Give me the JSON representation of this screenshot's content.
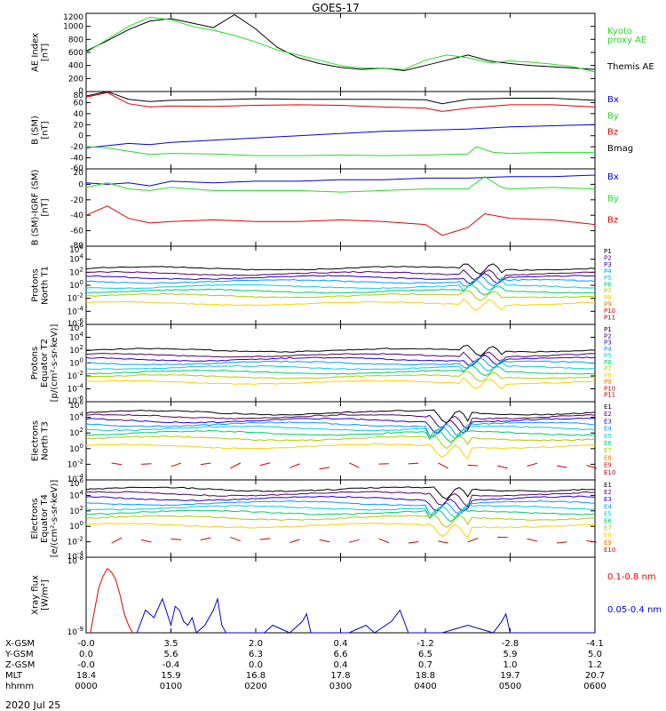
{
  "title": "GOES-17",
  "date_label": "2020 Jul 25",
  "colors": {
    "black": "#000000",
    "green": "#22dd22",
    "red": "#dd0000",
    "blue": "#0000cc",
    "ch": [
      "#000000",
      "#550066",
      "#2200cc",
      "#0099ff",
      "#00ccdd",
      "#00cc66",
      "#aacc00",
      "#ffcc00",
      "#ee7700",
      "#dd0000",
      "#aa0000"
    ]
  },
  "x_axis": {
    "rows": [
      {
        "label": "X-GSM",
        "values": [
          "-0.0",
          "3.5",
          "2.0",
          "0.4",
          "-1.2",
          "-2.8",
          "-4.1"
        ]
      },
      {
        "label": "Y-GSM",
        "values": [
          "0.0",
          "5.6",
          "6.3",
          "6.6",
          "6.5",
          "5.9",
          "5.0"
        ]
      },
      {
        "label": "Z-GSM",
        "values": [
          "-0.0",
          "-0.4",
          "0.0",
          "0.4",
          "0.7",
          "1.0",
          "1.2"
        ]
      },
      {
        "label": "MLT",
        "values": [
          "18.4",
          "15.9",
          "16.8",
          "17.8",
          "18.8",
          "19.7",
          "20.7"
        ]
      },
      {
        "label": "hhmm",
        "values": [
          "0000",
          "0100",
          "0200",
          "0300",
          "0400",
          "0500",
          "0600"
        ]
      }
    ]
  },
  "chart_data": [
    {
      "id": "ae",
      "type": "line",
      "ylabel": [
        "AE Index",
        "[nT]"
      ],
      "yticks": [
        "1200",
        "1000",
        "800",
        "600",
        "400",
        "200",
        "0"
      ],
      "ylim": [
        0,
        1200
      ],
      "legend": [
        {
          "text": "Kyoto",
          "color": "#22dd22"
        },
        {
          "text": "proxy AE",
          "color": "#22dd22"
        },
        {
          "text": "Themis AE",
          "color": "#000000"
        }
      ],
      "series": [
        {
          "name": "Themis AE",
          "color": "#000000",
          "x": [
            0,
            0.25,
            0.5,
            0.75,
            1.0,
            1.25,
            1.5,
            1.75,
            2.0,
            2.25,
            2.5,
            2.75,
            3.0,
            3.25,
            3.5,
            3.75,
            4.0,
            4.25,
            4.5,
            4.75,
            5.0,
            5.25,
            5.5,
            5.75,
            6.0
          ],
          "y": [
            620,
            780,
            950,
            1080,
            1120,
            1050,
            980,
            1180,
            960,
            680,
            520,
            430,
            370,
            340,
            360,
            320,
            400,
            480,
            560,
            470,
            430,
            400,
            380,
            360,
            340
          ]
        },
        {
          "name": "Kyoto proxy AE",
          "color": "#22dd22",
          "x": [
            0,
            0.25,
            0.5,
            0.75,
            1.0,
            1.25,
            1.5,
            1.75,
            2.0,
            2.25,
            2.5,
            2.75,
            3.0,
            3.25,
            3.5,
            3.75,
            4.0,
            4.25,
            4.5,
            4.75,
            5.0,
            5.25,
            5.5,
            5.75,
            6.0
          ],
          "y": [
            600,
            800,
            1000,
            1140,
            1100,
            1000,
            940,
            860,
            760,
            640,
            560,
            480,
            400,
            360,
            360,
            340,
            480,
            560,
            520,
            440,
            470,
            450,
            420,
            380,
            300
          ]
        }
      ]
    },
    {
      "id": "bsm",
      "type": "line",
      "ylabel": [
        "B (SM)",
        "[nT]"
      ],
      "yticks": [
        "80",
        "60",
        "40",
        "20",
        "0",
        "-20",
        "-40",
        "-60"
      ],
      "ylim": [
        -60,
        80
      ],
      "legend": [
        {
          "text": "Bx",
          "color": "#0000cc"
        },
        {
          "text": "By",
          "color": "#22dd22"
        },
        {
          "text": "Bz",
          "color": "#dd0000"
        },
        {
          "text": "Bmag",
          "color": "#000000"
        }
      ],
      "series": [
        {
          "name": "Bmag",
          "color": "#000000",
          "x": [
            0,
            0.25,
            0.5,
            0.75,
            1.0,
            1.5,
            2.0,
            2.5,
            3.0,
            3.5,
            4.0,
            4.2,
            4.5,
            5.0,
            5.5,
            6.0
          ],
          "y": [
            72,
            80,
            66,
            62,
            64,
            65,
            67,
            66,
            66,
            66,
            65,
            58,
            66,
            68,
            68,
            64
          ]
        },
        {
          "name": "Bz",
          "color": "#dd0000",
          "x": [
            0,
            0.25,
            0.5,
            0.75,
            1.0,
            1.5,
            2.0,
            2.5,
            3.0,
            3.5,
            4.0,
            4.2,
            4.5,
            5.0,
            5.5,
            6.0
          ],
          "y": [
            70,
            78,
            58,
            52,
            54,
            53,
            55,
            56,
            55,
            52,
            50,
            44,
            50,
            56,
            56,
            52
          ]
        },
        {
          "name": "Bx",
          "color": "#0000cc",
          "x": [
            0,
            0.25,
            0.5,
            0.75,
            1.0,
            1.5,
            2.0,
            2.5,
            3.0,
            3.5,
            4.0,
            4.5,
            5.0,
            5.5,
            6.0
          ],
          "y": [
            -22,
            -18,
            -14,
            -16,
            -12,
            -8,
            -4,
            0,
            4,
            8,
            10,
            12,
            16,
            18,
            20
          ]
        },
        {
          "name": "By",
          "color": "#22dd22",
          "x": [
            0,
            0.25,
            0.5,
            0.75,
            1.0,
            1.5,
            2.0,
            2.5,
            3.0,
            3.5,
            4.0,
            4.5,
            4.6,
            4.8,
            5.0,
            5.5,
            6.0
          ],
          "y": [
            -20,
            -22,
            -28,
            -34,
            -32,
            -33,
            -36,
            -36,
            -35,
            -36,
            -35,
            -33,
            -20,
            -30,
            -32,
            -30,
            -30
          ]
        }
      ]
    },
    {
      "id": "bsmigrf",
      "type": "line",
      "ylabel": [
        "B (SM)-IGRF (SM)",
        "[nT]"
      ],
      "yticks": [
        "20",
        "0",
        "-20",
        "-40",
        "-60",
        "-80"
      ],
      "ylim": [
        -80,
        20
      ],
      "legend": [
        {
          "text": "Bx",
          "color": "#0000cc"
        },
        {
          "text": "By",
          "color": "#22dd22"
        },
        {
          "text": "Bz",
          "color": "#dd0000"
        }
      ],
      "series": [
        {
          "name": "Bx",
          "color": "#0000cc",
          "x": [
            0,
            0.25,
            0.5,
            0.75,
            1.0,
            1.5,
            2.0,
            2.5,
            3.0,
            3.5,
            4.0,
            4.5,
            5.0,
            5.5,
            6.0
          ],
          "y": [
            2,
            0,
            2,
            -2,
            4,
            2,
            4,
            4,
            6,
            6,
            8,
            8,
            10,
            10,
            12
          ]
        },
        {
          "name": "By",
          "color": "#22dd22",
          "x": [
            0,
            0.25,
            0.5,
            0.75,
            1.0,
            1.5,
            2.0,
            2.5,
            3.0,
            3.5,
            4.0,
            4.5,
            4.7,
            4.9,
            5.0,
            5.5,
            6.0
          ],
          "y": [
            -4,
            2,
            -6,
            -8,
            -4,
            -8,
            -8,
            -8,
            -10,
            -8,
            -6,
            -6,
            10,
            -4,
            -6,
            -4,
            -6
          ]
        },
        {
          "name": "Bz",
          "color": "#dd0000",
          "x": [
            0,
            0.25,
            0.5,
            0.75,
            1.0,
            1.5,
            2.0,
            2.5,
            3.0,
            3.5,
            4.0,
            4.2,
            4.5,
            4.7,
            5.0,
            5.5,
            6.0
          ],
          "y": [
            -40,
            -28,
            -44,
            -50,
            -48,
            -46,
            -48,
            -48,
            -46,
            -48,
            -52,
            -66,
            -56,
            -38,
            -44,
            -46,
            -52
          ]
        }
      ]
    },
    {
      "id": "pt1",
      "type": "line",
      "scale": "log",
      "ylabel": [
        "Protons",
        "North T1"
      ],
      "yticks": [
        "10^6",
        "10^4",
        "10^2",
        "10^0",
        "10^-2",
        "10^-4",
        "10^-6"
      ],
      "ylim": [
        -6,
        6
      ],
      "legend": [
        {
          "text": "P1",
          "color": "#000000"
        },
        {
          "text": "P2",
          "color": "#550066"
        },
        {
          "text": "P3",
          "color": "#2200cc"
        },
        {
          "text": "P4",
          "color": "#0099ff"
        },
        {
          "text": "P5",
          "color": "#00ccdd"
        },
        {
          "text": "P6",
          "color": "#00cc66"
        },
        {
          "text": "P7",
          "color": "#aacc00"
        },
        {
          "text": "P8",
          "color": "#ffcc00"
        },
        {
          "text": "P9",
          "color": "#ee7700"
        },
        {
          "text": "P10",
          "color": "#dd0000"
        },
        {
          "text": "P11",
          "color": "#aa0000"
        }
      ],
      "levels": [
        2.6,
        1.8,
        1.2,
        0.6,
        -0.2,
        -0.9,
        -1.6,
        -2.8
      ],
      "event": [
        4.4,
        4.9
      ]
    },
    {
      "id": "pt2",
      "type": "line",
      "scale": "log",
      "ylabel": [
        "Protons",
        "Equator T2",
        "[p/(cm²-s-sr-keV)]"
      ],
      "yticks": [
        "10^6",
        "10^4",
        "10^2",
        "10^0",
        "10^-2",
        "10^-4",
        "10^-6"
      ],
      "ylim": [
        -6,
        6
      ],
      "legend": [
        {
          "text": "P1",
          "color": "#000000"
        },
        {
          "text": "P2",
          "color": "#550066"
        },
        {
          "text": "P3",
          "color": "#2200cc"
        },
        {
          "text": "P4",
          "color": "#0099ff"
        },
        {
          "text": "P5",
          "color": "#00ccdd"
        },
        {
          "text": "P6",
          "color": "#00cc66"
        },
        {
          "text": "P7",
          "color": "#aacc00"
        },
        {
          "text": "P8",
          "color": "#ffcc00"
        },
        {
          "text": "P9",
          "color": "#ee7700"
        },
        {
          "text": "P10",
          "color": "#dd0000"
        },
        {
          "text": "P11",
          "color": "#aa0000"
        }
      ],
      "levels": [
        2.0,
        1.2,
        0.6,
        0.0,
        -0.7,
        -1.4,
        -2.1,
        -3.0
      ],
      "event": [
        4.4,
        4.9
      ]
    },
    {
      "id": "et3",
      "type": "line",
      "scale": "log",
      "ylabel": [
        "Electrons",
        "North T3"
      ],
      "yticks": [
        "10^6",
        "10^4",
        "10^2",
        "10^0",
        "10^-2",
        "10^-4"
      ],
      "ylim": [
        -4,
        6
      ],
      "legend": [
        {
          "text": "E1",
          "color": "#000000"
        },
        {
          "text": "E2",
          "color": "#550066"
        },
        {
          "text": "E3",
          "color": "#2200cc"
        },
        {
          "text": "E4",
          "color": "#0099ff"
        },
        {
          "text": "E5",
          "color": "#00ccdd"
        },
        {
          "text": "E6",
          "color": "#00cc66"
        },
        {
          "text": "E7",
          "color": "#aacc00"
        },
        {
          "text": "E8",
          "color": "#ee7700"
        },
        {
          "text": "E9",
          "color": "#dd0000"
        },
        {
          "text": "E10",
          "color": "#aa0000"
        }
      ],
      "levels": [
        4.6,
        4.1,
        3.6,
        3.1,
        2.6,
        2.0,
        1.3,
        0.3
      ],
      "sparse": -2.2,
      "event": [
        4.0,
        4.5
      ]
    },
    {
      "id": "et4",
      "type": "line",
      "scale": "log",
      "ylabel": [
        "Electrons",
        "Equator T4",
        "[e/(cm²-s-sr-keV)]"
      ],
      "yticks": [
        "10^6",
        "10^4",
        "10^2",
        "10^0",
        "10^-2",
        "10^-4"
      ],
      "ylim": [
        -4,
        6
      ],
      "legend": [
        {
          "text": "E1",
          "color": "#000000"
        },
        {
          "text": "E2",
          "color": "#550066"
        },
        {
          "text": "E3",
          "color": "#2200cc"
        },
        {
          "text": "E4",
          "color": "#0099ff"
        },
        {
          "text": "E5",
          "color": "#00ccdd"
        },
        {
          "text": "E6",
          "color": "#00cc66"
        },
        {
          "text": "E7",
          "color": "#aacc00"
        },
        {
          "text": "E8",
          "color": "#ffcc00"
        },
        {
          "text": "E9",
          "color": "#ee7700"
        },
        {
          "text": "E10",
          "color": "#dd0000"
        }
      ],
      "levels": [
        4.8,
        4.2,
        3.6,
        3.0,
        2.4,
        1.8,
        1.1,
        0.1
      ],
      "sparse": -1.8,
      "event": [
        4.0,
        4.5
      ]
    },
    {
      "id": "xray",
      "type": "line",
      "scale": "log",
      "ylabel": [
        "Xray flux",
        "[W/m²]"
      ],
      "yticks": [
        "10^-8",
        "10^-9"
      ],
      "ylim": [
        -9,
        -8
      ],
      "legend": [
        {
          "text": "0.1-0.8 nm",
          "color": "#dd0000"
        },
        {
          "text": "0.05-0.4 nm",
          "color": "#0000cc"
        }
      ],
      "series": [
        {
          "name": "0.1-0.8 nm",
          "color": "#dd0000",
          "x": [
            0.05,
            0.1,
            0.15,
            0.2,
            0.25,
            0.3,
            0.35,
            0.4,
            0.45,
            0.5,
            0.55
          ],
          "y": [
            -9,
            -8.7,
            -8.4,
            -8.25,
            -8.15,
            -8.2,
            -8.3,
            -8.5,
            -8.75,
            -8.9,
            -9
          ]
        },
        {
          "name": "0.05-0.4 nm",
          "color": "#0000cc",
          "x": [
            0.6,
            0.7,
            0.8,
            0.9,
            1.0,
            1.05,
            1.1,
            1.15,
            1.2,
            1.25,
            1.3,
            1.4,
            1.5,
            1.55,
            1.6,
            1.65,
            1.7,
            1.8,
            2.1,
            2.2,
            2.4,
            2.55,
            2.6,
            2.65,
            3.1,
            3.3,
            3.4,
            3.6,
            3.7,
            3.8,
            4.05,
            4.2,
            4.5,
            4.8,
            4.9,
            4.95,
            5.0,
            5.1,
            5.6,
            6.0
          ],
          "y": [
            -9,
            -8.7,
            -8.8,
            -8.55,
            -8.9,
            -8.65,
            -8.7,
            -8.85,
            -8.9,
            -8.8,
            -9,
            -8.9,
            -8.7,
            -8.55,
            -8.9,
            -9,
            -9,
            -9,
            -9,
            -8.9,
            -9,
            -8.85,
            -8.75,
            -9,
            -9,
            -8.9,
            -9,
            -8.85,
            -8.7,
            -9,
            -9,
            -9,
            -8.9,
            -9,
            -8.85,
            -8.75,
            -9,
            -9,
            -9,
            -9
          ]
        }
      ]
    }
  ]
}
